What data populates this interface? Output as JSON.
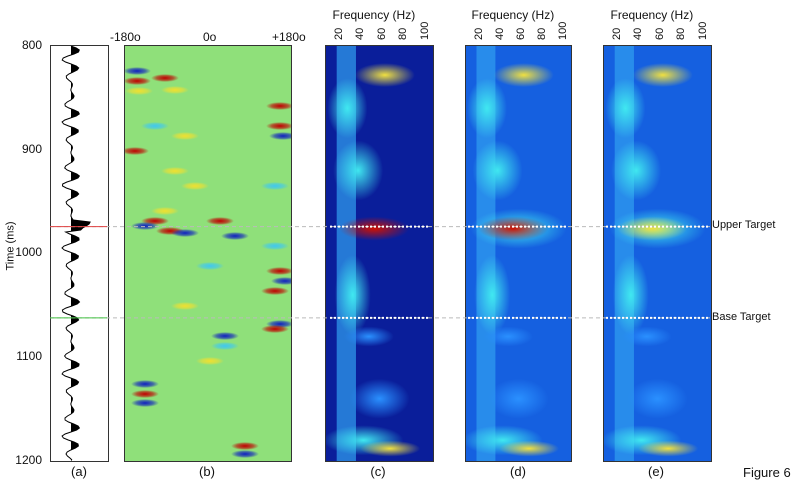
{
  "figure_label": "Figure 6",
  "chart_data": {
    "type": "heatmap",
    "ylabel": "Time (ms)",
    "ylim": [
      800,
      1200
    ],
    "yticks": [
      "800",
      "900",
      "1000",
      "1100",
      "1200"
    ],
    "panels": [
      {
        "label": "(a)",
        "type": "line",
        "content": "seismic trace"
      },
      {
        "label": "(b)",
        "xticks": [
          "-180o",
          "0o",
          "+180o"
        ]
      },
      {
        "label": "(c)",
        "xlabel": "Frequency (Hz)",
        "xticks": [
          "20",
          "40",
          "60",
          "80",
          "100"
        ]
      },
      {
        "label": "(d)",
        "xlabel": "Frequency (Hz)",
        "xticks": [
          "20",
          "40",
          "60",
          "80",
          "100"
        ]
      },
      {
        "label": "(e)",
        "xlabel": "Frequency (Hz)",
        "xticks": [
          "20",
          "40",
          "60",
          "80",
          "100"
        ]
      }
    ],
    "annotations": [
      {
        "text": "Upper Target",
        "time": 975,
        "color": "#e04040"
      },
      {
        "text": "Base Target",
        "time": 1063,
        "color": "#40c040"
      }
    ],
    "colormap": "jet"
  }
}
